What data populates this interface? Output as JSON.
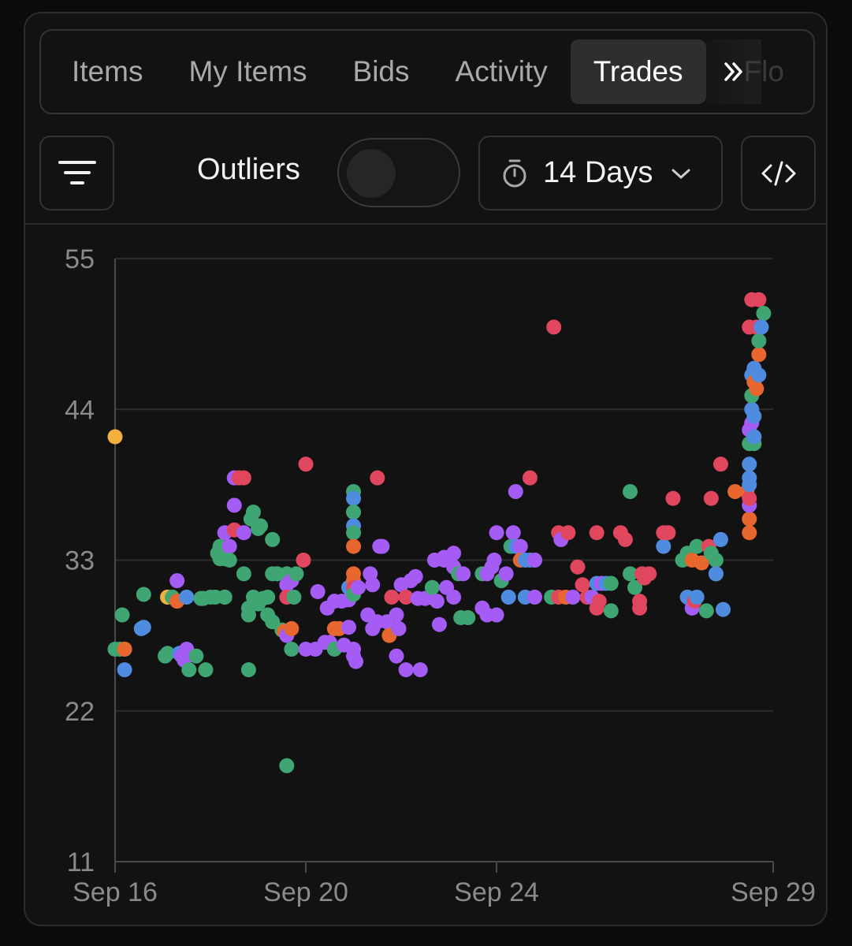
{
  "tabs": [
    {
      "label": "Items",
      "active": false
    },
    {
      "label": "My Items",
      "active": false
    },
    {
      "label": "Bids",
      "active": false
    },
    {
      "label": "Activity",
      "active": false
    },
    {
      "label": "Trades",
      "active": true
    }
  ],
  "tabs_overflow_label": "Flo",
  "toolbar": {
    "filter_icon": "filter-lines-icon",
    "outliers_label": "Outliers",
    "outliers_enabled": false,
    "range_icon": "stopwatch-icon",
    "range_label": "14 Days",
    "embed_icon": "code-icon"
  },
  "colors": {
    "red": "#e0475e",
    "orange": "#e8672e",
    "green": "#3fa673",
    "blue": "#4f8cdf",
    "purple": "#a45cf5",
    "yellow": "#f2b13c"
  },
  "chart_data": {
    "type": "scatter",
    "ylim": [
      11,
      55
    ],
    "y_ticks": [
      "55",
      "44",
      "33",
      "22",
      "11"
    ],
    "x_ticks": [
      "Sep 16",
      "Sep 20",
      "Sep 24",
      "Sep 29"
    ],
    "x_tick_values": [
      16,
      20,
      24,
      29.8
    ],
    "points": [
      [
        16.0,
        42.0,
        "yellow"
      ],
      [
        16.0,
        26.5,
        "green"
      ],
      [
        16.1,
        26.5,
        "green"
      ],
      [
        16.2,
        26.5,
        "green"
      ],
      [
        16.2,
        26.5,
        "orange"
      ],
      [
        16.15,
        29.0,
        "green"
      ],
      [
        16.2,
        25.0,
        "blue"
      ],
      [
        16.55,
        28.0,
        "blue"
      ],
      [
        16.6,
        28.1,
        "blue"
      ],
      [
        16.6,
        30.5,
        "green"
      ],
      [
        17.05,
        26.0,
        "green"
      ],
      [
        17.1,
        26.2,
        "green"
      ],
      [
        17.1,
        30.3,
        "yellow"
      ],
      [
        17.2,
        30.3,
        "green"
      ],
      [
        17.3,
        30.0,
        "orange"
      ],
      [
        17.3,
        31.5,
        "purple"
      ],
      [
        17.35,
        26.2,
        "blue"
      ],
      [
        17.4,
        26.0,
        "purple"
      ],
      [
        17.45,
        25.7,
        "purple"
      ],
      [
        17.5,
        26.5,
        "purple"
      ],
      [
        17.5,
        30.3,
        "blue"
      ],
      [
        17.55,
        25.0,
        "green"
      ],
      [
        17.7,
        26.0,
        "green"
      ],
      [
        17.8,
        30.2,
        "green"
      ],
      [
        17.85,
        30.2,
        "green"
      ],
      [
        17.9,
        25.0,
        "green"
      ],
      [
        18.0,
        30.3,
        "green"
      ],
      [
        18.1,
        30.3,
        "green"
      ],
      [
        18.15,
        33.5,
        "green"
      ],
      [
        18.2,
        33.1,
        "green"
      ],
      [
        18.2,
        34.0,
        "green"
      ],
      [
        18.3,
        35.0,
        "purple"
      ],
      [
        18.3,
        33.1,
        "green"
      ],
      [
        18.3,
        30.3,
        "green"
      ],
      [
        18.3,
        30.3,
        "green"
      ],
      [
        18.4,
        34.0,
        "purple"
      ],
      [
        18.4,
        33.0,
        "green"
      ],
      [
        18.5,
        37.0,
        "purple"
      ],
      [
        18.5,
        39.0,
        "purple"
      ],
      [
        18.5,
        35.2,
        "red"
      ],
      [
        18.6,
        39.0,
        "red"
      ],
      [
        18.7,
        39.0,
        "red"
      ],
      [
        18.7,
        35.0,
        "purple"
      ],
      [
        18.7,
        32.0,
        "green"
      ],
      [
        18.8,
        29.5,
        "green"
      ],
      [
        18.8,
        29.0,
        "green"
      ],
      [
        18.8,
        25.0,
        "green"
      ],
      [
        18.85,
        36.0,
        "green"
      ],
      [
        18.9,
        36.5,
        "green"
      ],
      [
        18.9,
        30.3,
        "green"
      ],
      [
        19.0,
        35.3,
        "green"
      ],
      [
        19.0,
        29.8,
        "green"
      ],
      [
        19.05,
        35.5,
        "green"
      ],
      [
        19.1,
        30.2,
        "green"
      ],
      [
        19.2,
        30.3,
        "green"
      ],
      [
        19.2,
        29.0,
        "green"
      ],
      [
        19.3,
        34.5,
        "green"
      ],
      [
        19.3,
        28.5,
        "green"
      ],
      [
        19.3,
        32.0,
        "green"
      ],
      [
        19.4,
        32.0,
        "green"
      ],
      [
        19.5,
        27.9,
        "green"
      ],
      [
        19.55,
        27.8,
        "orange"
      ],
      [
        19.6,
        32.0,
        "green"
      ],
      [
        19.6,
        31.2,
        "purple"
      ],
      [
        19.6,
        30.3,
        "red"
      ],
      [
        19.6,
        27.5,
        "purple"
      ],
      [
        19.7,
        28.0,
        "orange"
      ],
      [
        19.7,
        26.5,
        "green"
      ],
      [
        19.7,
        31.5,
        "purple"
      ],
      [
        19.75,
        30.3,
        "green"
      ],
      [
        19.8,
        32.0,
        "green"
      ],
      [
        19.6,
        18.0,
        "green"
      ],
      [
        19.95,
        33.0,
        "red"
      ],
      [
        20.0,
        40.0,
        "red"
      ],
      [
        20.0,
        26.5,
        "purple"
      ],
      [
        20.2,
        26.5,
        "purple"
      ],
      [
        20.25,
        30.7,
        "purple"
      ],
      [
        20.4,
        27.0,
        "purple"
      ],
      [
        20.45,
        29.5,
        "purple"
      ],
      [
        20.5,
        27.0,
        "purple"
      ],
      [
        20.6,
        28.0,
        "orange"
      ],
      [
        20.6,
        30.0,
        "purple"
      ],
      [
        20.6,
        26.5,
        "green"
      ],
      [
        20.7,
        28.0,
        "orange"
      ],
      [
        20.75,
        30.0,
        "purple"
      ],
      [
        20.8,
        26.8,
        "purple"
      ],
      [
        20.9,
        28.1,
        "purple"
      ],
      [
        20.9,
        31.0,
        "blue"
      ],
      [
        20.9,
        30.1,
        "purple"
      ],
      [
        21.0,
        38.0,
        "green"
      ],
      [
        21.0,
        37.5,
        "blue"
      ],
      [
        21.0,
        36.5,
        "green"
      ],
      [
        21.0,
        35.5,
        "blue"
      ],
      [
        21.0,
        35.0,
        "green"
      ],
      [
        21.0,
        34.0,
        "orange"
      ],
      [
        21.0,
        32.0,
        "orange"
      ],
      [
        21.0,
        31.5,
        "orange"
      ],
      [
        21.0,
        31.0,
        "red"
      ],
      [
        21.0,
        30.5,
        "green"
      ],
      [
        21.0,
        26.5,
        "purple"
      ],
      [
        21.0,
        26.0,
        "purple"
      ],
      [
        21.05,
        25.6,
        "purple"
      ],
      [
        21.1,
        31.0,
        "purple"
      ],
      [
        21.3,
        29.0,
        "purple"
      ],
      [
        21.35,
        32.0,
        "purple"
      ],
      [
        21.4,
        31.2,
        "purple"
      ],
      [
        21.4,
        28.0,
        "purple"
      ],
      [
        21.5,
        28.5,
        "purple"
      ],
      [
        21.5,
        39.0,
        "red"
      ],
      [
        21.55,
        34.0,
        "purple"
      ],
      [
        21.6,
        34.0,
        "purple"
      ],
      [
        21.7,
        28.5,
        "purple"
      ],
      [
        21.75,
        27.5,
        "orange"
      ],
      [
        21.8,
        30.3,
        "red"
      ],
      [
        21.9,
        26.0,
        "purple"
      ],
      [
        21.9,
        29.0,
        "purple"
      ],
      [
        21.95,
        28.0,
        "purple"
      ],
      [
        22.0,
        31.2,
        "purple"
      ],
      [
        22.1,
        30.3,
        "red"
      ],
      [
        22.1,
        25.0,
        "purple"
      ],
      [
        22.2,
        31.5,
        "purple"
      ],
      [
        22.3,
        31.8,
        "purple"
      ],
      [
        22.35,
        30.2,
        "purple"
      ],
      [
        22.4,
        25.0,
        "purple"
      ],
      [
        22.5,
        30.2,
        "purple"
      ],
      [
        22.6,
        30.3,
        "purple"
      ],
      [
        22.65,
        31.0,
        "green"
      ],
      [
        22.7,
        33.0,
        "purple"
      ],
      [
        22.75,
        30.0,
        "purple"
      ],
      [
        22.8,
        28.3,
        "purple"
      ],
      [
        22.9,
        33.2,
        "purple"
      ],
      [
        22.9,
        33.0,
        "purple"
      ],
      [
        22.95,
        31.0,
        "purple"
      ],
      [
        23.1,
        32.5,
        "purple"
      ],
      [
        23.1,
        30.3,
        "purple"
      ],
      [
        23.1,
        33.5,
        "purple"
      ],
      [
        23.2,
        32.0,
        "green"
      ],
      [
        23.25,
        28.8,
        "green"
      ],
      [
        23.3,
        32.0,
        "purple"
      ],
      [
        23.4,
        28.8,
        "green"
      ],
      [
        23.7,
        32.0,
        "green"
      ],
      [
        23.8,
        32.0,
        "purple"
      ],
      [
        23.7,
        29.5,
        "purple"
      ],
      [
        23.8,
        29.0,
        "purple"
      ],
      [
        23.9,
        32.5,
        "purple"
      ],
      [
        23.95,
        33.0,
        "purple"
      ],
      [
        24.0,
        35.0,
        "purple"
      ],
      [
        24.0,
        29.0,
        "purple"
      ],
      [
        24.1,
        31.5,
        "green"
      ],
      [
        24.2,
        32.0,
        "purple"
      ],
      [
        24.25,
        30.3,
        "blue"
      ],
      [
        24.3,
        34.0,
        "green"
      ],
      [
        24.35,
        35.0,
        "purple"
      ],
      [
        24.4,
        38.0,
        "purple"
      ],
      [
        24.4,
        34.0,
        "blue"
      ],
      [
        24.5,
        34.0,
        "purple"
      ],
      [
        24.5,
        33.0,
        "orange"
      ],
      [
        24.6,
        33.0,
        "blue"
      ],
      [
        24.6,
        30.3,
        "blue"
      ],
      [
        24.7,
        39.0,
        "red"
      ],
      [
        24.7,
        33.0,
        "blue"
      ],
      [
        24.8,
        33.0,
        "blue"
      ],
      [
        24.8,
        30.3,
        "purple"
      ],
      [
        24.8,
        33.0,
        "purple"
      ],
      [
        25.15,
        30.3,
        "green"
      ],
      [
        25.2,
        50.0,
        "red"
      ],
      [
        25.3,
        35.0,
        "red"
      ],
      [
        25.3,
        30.3,
        "red"
      ],
      [
        25.35,
        34.5,
        "purple"
      ],
      [
        25.5,
        35.0,
        "red"
      ],
      [
        25.45,
        30.3,
        "orange"
      ],
      [
        25.6,
        30.3,
        "purple"
      ],
      [
        25.7,
        32.5,
        "red"
      ],
      [
        25.8,
        31.2,
        "red"
      ],
      [
        25.9,
        30.3,
        "red"
      ],
      [
        26.0,
        30.3,
        "purple"
      ],
      [
        26.1,
        31.3,
        "blue"
      ],
      [
        26.1,
        35.0,
        "red"
      ],
      [
        26.1,
        29.5,
        "red"
      ],
      [
        26.15,
        30.0,
        "red"
      ],
      [
        26.2,
        31.3,
        "purple"
      ],
      [
        26.3,
        31.3,
        "blue"
      ],
      [
        26.4,
        31.3,
        "green"
      ],
      [
        26.4,
        29.3,
        "green"
      ],
      [
        26.6,
        35.0,
        "red"
      ],
      [
        26.7,
        34.5,
        "red"
      ],
      [
        26.8,
        38.0,
        "green"
      ],
      [
        26.8,
        32.0,
        "green"
      ],
      [
        26.9,
        31.0,
        "green"
      ],
      [
        27.0,
        30.0,
        "red"
      ],
      [
        27.0,
        29.5,
        "red"
      ],
      [
        27.05,
        32.0,
        "red"
      ],
      [
        27.1,
        31.7,
        "red"
      ],
      [
        27.2,
        32.0,
        "red"
      ],
      [
        27.5,
        34.0,
        "blue"
      ],
      [
        27.5,
        35.0,
        "red"
      ],
      [
        27.6,
        35.0,
        "red"
      ],
      [
        27.7,
        37.5,
        "red"
      ],
      [
        27.9,
        33.0,
        "green"
      ],
      [
        28.0,
        33.5,
        "green"
      ],
      [
        28.0,
        30.3,
        "blue"
      ],
      [
        28.1,
        33.0,
        "orange"
      ],
      [
        28.1,
        29.5,
        "purple"
      ],
      [
        28.15,
        30.0,
        "red"
      ],
      [
        28.2,
        30.3,
        "blue"
      ],
      [
        28.2,
        34.0,
        "green"
      ],
      [
        28.3,
        32.8,
        "orange"
      ],
      [
        28.4,
        29.3,
        "green"
      ],
      [
        28.45,
        34.0,
        "red"
      ],
      [
        28.5,
        33.5,
        "green"
      ],
      [
        28.5,
        37.5,
        "red"
      ],
      [
        28.6,
        33.0,
        "green"
      ],
      [
        28.6,
        32.0,
        "green"
      ],
      [
        28.6,
        32.0,
        "blue"
      ],
      [
        28.7,
        34.5,
        "blue"
      ],
      [
        28.7,
        40.0,
        "red"
      ],
      [
        28.75,
        29.4,
        "blue"
      ],
      [
        29.0,
        38.0,
        "orange"
      ],
      [
        29.25,
        38.0,
        "orange"
      ],
      [
        29.3,
        35.0,
        "orange"
      ],
      [
        29.3,
        36.0,
        "orange"
      ],
      [
        29.3,
        37.0,
        "purple"
      ],
      [
        29.3,
        37.5,
        "red"
      ],
      [
        29.3,
        38.5,
        "blue"
      ],
      [
        29.3,
        39.0,
        "blue"
      ],
      [
        29.3,
        40.0,
        "blue"
      ],
      [
        29.3,
        41.5,
        "green"
      ],
      [
        29.3,
        42.5,
        "purple"
      ],
      [
        29.3,
        50.0,
        "red"
      ],
      [
        29.35,
        43.0,
        "purple"
      ],
      [
        29.35,
        44.0,
        "blue"
      ],
      [
        29.35,
        45.0,
        "green"
      ],
      [
        29.35,
        46.5,
        "blue"
      ],
      [
        29.35,
        52.0,
        "red"
      ],
      [
        29.4,
        41.5,
        "green"
      ],
      [
        29.4,
        42.0,
        "blue"
      ],
      [
        29.4,
        43.5,
        "blue"
      ],
      [
        29.4,
        46.0,
        "orange"
      ],
      [
        29.4,
        47.0,
        "blue"
      ],
      [
        29.45,
        45.5,
        "orange"
      ],
      [
        29.45,
        50.0,
        "red"
      ],
      [
        29.5,
        48.0,
        "orange"
      ],
      [
        29.5,
        49.0,
        "green"
      ],
      [
        29.5,
        46.5,
        "blue"
      ],
      [
        29.5,
        52.0,
        "red"
      ],
      [
        29.55,
        50.0,
        "purple"
      ],
      [
        29.6,
        51.0,
        "green"
      ],
      [
        29.55,
        50.0,
        "blue"
      ]
    ]
  }
}
